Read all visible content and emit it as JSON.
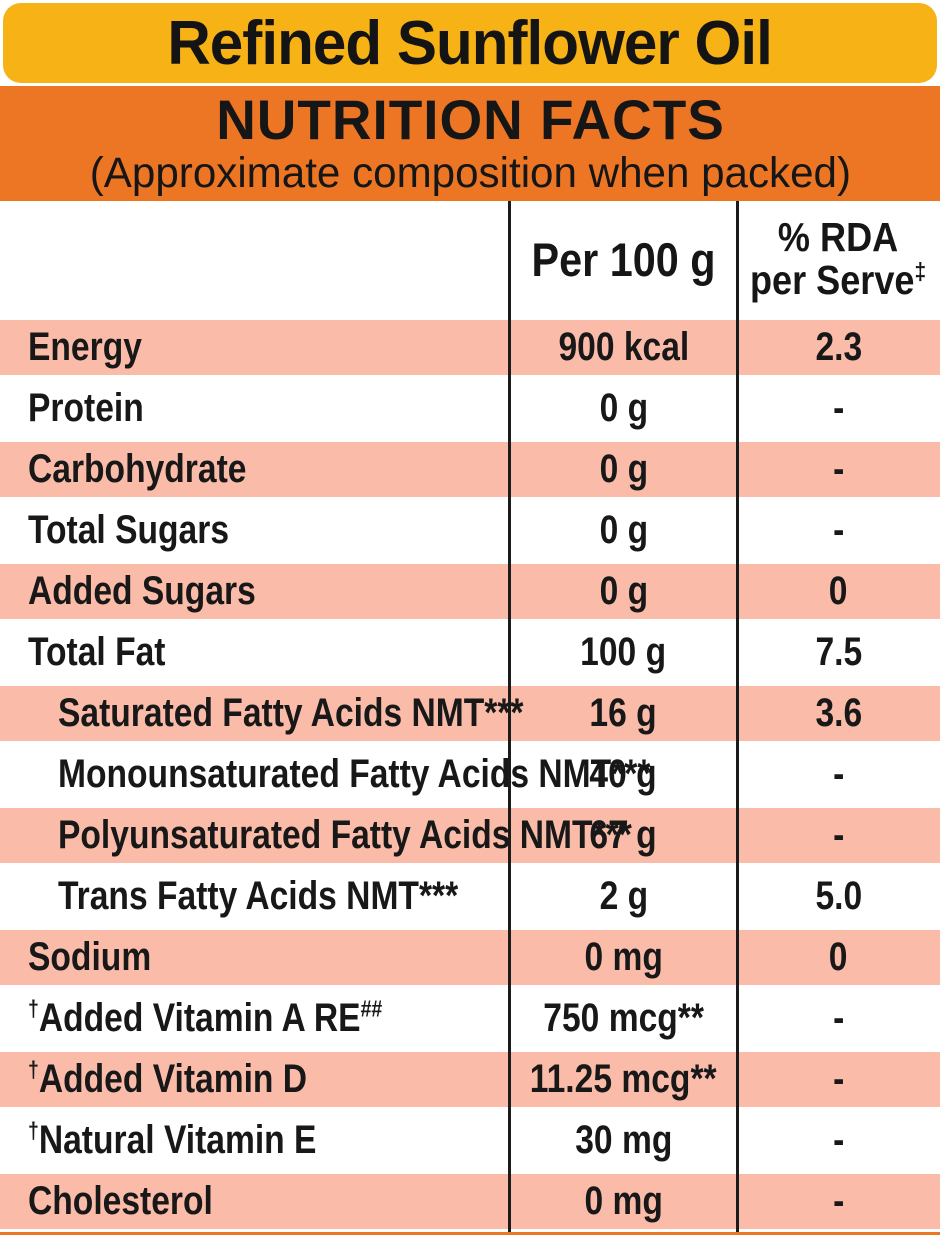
{
  "title": "Refined Sunflower Oil",
  "section_header": {
    "heading": "NUTRITION FACTS",
    "subheading": "(Approximate composition when packed)"
  },
  "table": {
    "columns": {
      "col1": "",
      "col2": "Per 100 g",
      "col3_line1": "% RDA",
      "col3_line2": "per Serve",
      "col3_sup": "‡"
    },
    "rows": [
      {
        "sup_before": "",
        "label": "Energy",
        "sup_after": "",
        "per_100g": "900 kcal",
        "rda_per_serve": "2.3",
        "shaded": true,
        "indent": false
      },
      {
        "sup_before": "",
        "label": "Protein",
        "sup_after": "",
        "per_100g": "0 g",
        "rda_per_serve": "-",
        "shaded": false,
        "indent": false
      },
      {
        "sup_before": "",
        "label": "Carbohydrate",
        "sup_after": "",
        "per_100g": "0 g",
        "rda_per_serve": "-",
        "shaded": true,
        "indent": false
      },
      {
        "sup_before": "",
        "label": "Total Sugars",
        "sup_after": "",
        "per_100g": "0 g",
        "rda_per_serve": "-",
        "shaded": false,
        "indent": false
      },
      {
        "sup_before": "",
        "label": "Added Sugars",
        "sup_after": "",
        "per_100g": "0 g",
        "rda_per_serve": "0",
        "shaded": true,
        "indent": false
      },
      {
        "sup_before": "",
        "label": "Total Fat",
        "sup_after": "",
        "per_100g": "100 g",
        "rda_per_serve": "7.5",
        "shaded": false,
        "indent": false
      },
      {
        "sup_before": "",
        "label": "Saturated Fatty Acids NMT***",
        "sup_after": "",
        "per_100g": "16 g",
        "rda_per_serve": "3.6",
        "shaded": true,
        "indent": true
      },
      {
        "sup_before": "",
        "label": "Monounsaturated Fatty Acids NMT***",
        "sup_after": "",
        "per_100g": "40 g",
        "rda_per_serve": "-",
        "shaded": false,
        "indent": true
      },
      {
        "sup_before": "",
        "label": "Polyunsaturated Fatty Acids NMT***",
        "sup_after": "",
        "per_100g": "67 g",
        "rda_per_serve": "-",
        "shaded": true,
        "indent": true
      },
      {
        "sup_before": "",
        "label": "Trans Fatty Acids NMT***",
        "sup_after": "",
        "per_100g": "2 g",
        "rda_per_serve": "5.0",
        "shaded": false,
        "indent": true
      },
      {
        "sup_before": "",
        "label": "Sodium",
        "sup_after": "",
        "per_100g": "0 mg",
        "rda_per_serve": "0",
        "shaded": true,
        "indent": false
      },
      {
        "sup_before": "†",
        "label": "Added Vitamin A RE",
        "sup_after": "##",
        "per_100g": "750 mcg**",
        "rda_per_serve": "-",
        "shaded": false,
        "indent": false
      },
      {
        "sup_before": "†",
        "label": "Added Vitamin D",
        "sup_after": "",
        "per_100g": "11.25 mcg**",
        "rda_per_serve": "-",
        "shaded": true,
        "indent": false
      },
      {
        "sup_before": "†",
        "label": "Natural Vitamin E",
        "sup_after": "",
        "per_100g": "30 mg",
        "rda_per_serve": "-",
        "shaded": false,
        "indent": false
      },
      {
        "sup_before": "",
        "label": "Cholesterol",
        "sup_after": "",
        "per_100g": "0 mg",
        "rda_per_serve": "-",
        "shaded": true,
        "indent": false
      }
    ]
  },
  "colors": {
    "banner_yellow": "#F7B215",
    "banner_orange": "#ED7625",
    "row_salmon": "#FABCA9",
    "text_black": "#161616"
  }
}
